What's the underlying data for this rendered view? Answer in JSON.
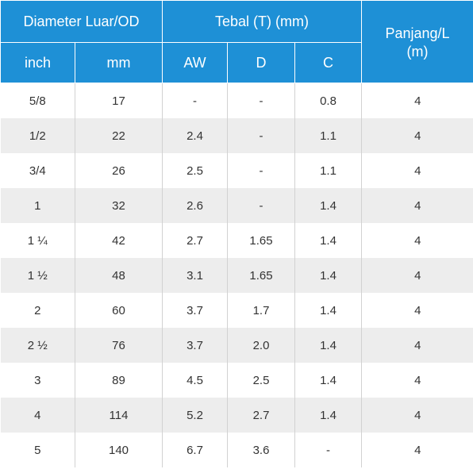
{
  "table": {
    "headers": {
      "outer_diameter": "Diameter Luar/OD",
      "thickness": "Tebal (T) (mm)",
      "length_line1": "Panjang/L",
      "length_line2": "(m)",
      "inch": "inch",
      "mm": "mm",
      "aw": "AW",
      "d": "D",
      "c": "C"
    },
    "rows": [
      {
        "inch": "5/8",
        "mm": "17",
        "aw": "-",
        "d": "-",
        "c": "0.8",
        "length": "4"
      },
      {
        "inch": "1/2",
        "mm": "22",
        "aw": "2.4",
        "d": "-",
        "c": "1.1",
        "length": "4"
      },
      {
        "inch": "3/4",
        "mm": "26",
        "aw": "2.5",
        "d": "-",
        "c": "1.1",
        "length": "4"
      },
      {
        "inch": "1",
        "mm": "32",
        "aw": "2.6",
        "d": "-",
        "c": "1.4",
        "length": "4"
      },
      {
        "inch": "1 ¼",
        "mm": "42",
        "aw": "2.7",
        "d": "1.65",
        "c": "1.4",
        "length": "4"
      },
      {
        "inch": "1 ½",
        "mm": "48",
        "aw": "3.1",
        "d": "1.65",
        "c": "1.4",
        "length": "4"
      },
      {
        "inch": "2",
        "mm": "60",
        "aw": "3.7",
        "d": "1.7",
        "c": "1.4",
        "length": "4"
      },
      {
        "inch": "2 ½",
        "mm": "76",
        "aw": "3.7",
        "d": "2.0",
        "c": "1.4",
        "length": "4"
      },
      {
        "inch": "3",
        "mm": "89",
        "aw": "4.5",
        "d": "2.5",
        "c": "1.4",
        "length": "4"
      },
      {
        "inch": "4",
        "mm": "114",
        "aw": "5.2",
        "d": "2.7",
        "c": "1.4",
        "length": "4"
      },
      {
        "inch": "5",
        "mm": "140",
        "aw": "6.7",
        "d": "3.6",
        "c": "-",
        "length": "4"
      }
    ]
  }
}
